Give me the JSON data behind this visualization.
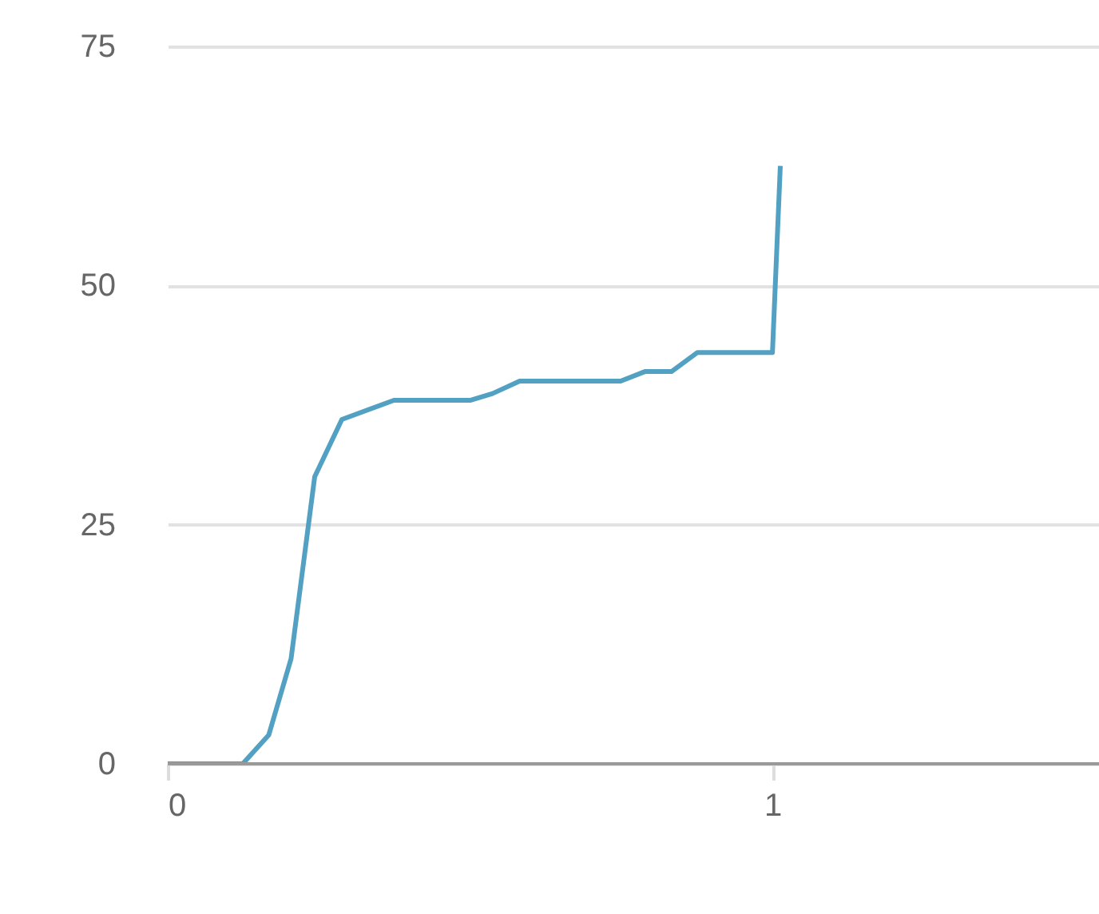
{
  "chart_data": {
    "type": "line",
    "x": [
      0,
      0.124,
      0.167,
      0.204,
      0.243,
      0.288,
      0.374,
      0.5,
      0.537,
      0.582,
      0.749,
      0.789,
      0.833,
      0.876,
      1.0,
      1.013
    ],
    "series": [
      {
        "color": "#52a1c3",
        "values": [
          0,
          0,
          3,
          11,
          30,
          36,
          38,
          38,
          38.7,
          40,
          40,
          41,
          41,
          43,
          43,
          62.5
        ]
      }
    ],
    "xlim": [
      0,
      1.54
    ],
    "xticks": [
      0,
      1
    ],
    "ylim": [
      0,
      75
    ],
    "yticks": [
      0,
      25,
      50,
      75
    ],
    "grid": "y",
    "legend": false,
    "marker": "none",
    "line_style": "solid"
  }
}
